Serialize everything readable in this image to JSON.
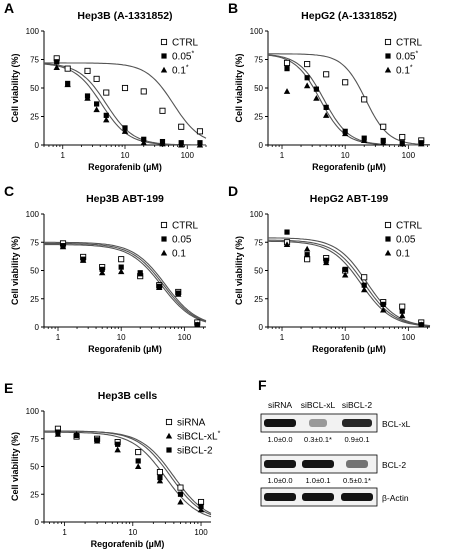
{
  "figure": {
    "panels": [
      {
        "letter": "A",
        "title": "Hep3B (A-1331852)",
        "ylabel": "Cell viability (%)",
        "xlabel": "Regorafenib (µM)"
      },
      {
        "letter": "B",
        "title": "HepG2 (A-1331852)",
        "ylabel": "Cell viability (%)",
        "xlabel": "Regorafenib (µM)"
      },
      {
        "letter": "C",
        "title": "Hep3B ABT-199",
        "ylabel": "Cell viability (%)",
        "xlabel": "Regorafenib (µM)"
      },
      {
        "letter": "D",
        "title": "HepG2 ABT-199",
        "ylabel": "Cell viability (%)",
        "xlabel": "Regorafenib (µM)"
      },
      {
        "letter": "E",
        "title": "Hep3B cells",
        "ylabel": "Cell viability (%)",
        "xlabel": "Regorafenib (µM)"
      }
    ],
    "western": {
      "letter": "F",
      "lanes": [
        "siRNA",
        "siBCL-xL",
        "siBCL-2"
      ],
      "rows": [
        {
          "label": "BCL-xL",
          "quant": [
            "1.0±0.0",
            "0.3±0.1*",
            "0.9±0.1"
          ],
          "intensity": [
            1.0,
            0.3,
            0.9
          ]
        },
        {
          "label": "BCL-2",
          "quant": [
            "1.0±0.0",
            "1.0±0.1",
            "0.5±0.1*"
          ],
          "intensity": [
            1.0,
            1.0,
            0.5
          ]
        },
        {
          "label": "β-Actin",
          "quant": [],
          "intensity": [
            1.0,
            1.0,
            1.0
          ]
        }
      ]
    }
  },
  "chart_data": [
    {
      "type": "scatter",
      "title": "Hep3B (A-1331852)",
      "xlabel": "Regorafenib (µM)",
      "ylabel": "Cell viability (%)",
      "xscale": "log",
      "xlim": [
        0.5,
        200
      ],
      "ylim": [
        0,
        100
      ],
      "yticks": [
        0,
        25,
        50,
        75,
        100
      ],
      "xticks": [
        1,
        10,
        100
      ],
      "legend_position": "top-right",
      "series": [
        {
          "name": "CTRL",
          "marker": "open-square",
          "x": [
            0.8,
            1.2,
            2.5,
            3.5,
            5,
            10,
            20,
            40,
            80,
            160
          ],
          "y": [
            76,
            67,
            65,
            58,
            46,
            50,
            47,
            30,
            16,
            12
          ],
          "fit": {
            "top": 72,
            "bottom": 0,
            "ic50": 60,
            "hill": 2.0
          }
        },
        {
          "name": "0.05*",
          "legend_label": "0.05",
          "legend_sup": "*",
          "marker": "filled-square",
          "x": [
            0.8,
            1.2,
            2.5,
            3.5,
            5,
            10,
            20,
            40,
            80,
            160
          ],
          "y": [
            73,
            54,
            43,
            36,
            26,
            15,
            5,
            3,
            2,
            2
          ],
          "fit": {
            "top": 72,
            "bottom": 0,
            "ic50": 5,
            "hill": 2.0
          }
        },
        {
          "name": "0.1*",
          "legend_label": "0.1",
          "legend_sup": "*",
          "marker": "filled-triangle",
          "x": [
            0.8,
            1.2,
            2.5,
            3.5,
            5,
            10,
            20,
            40,
            80,
            160
          ],
          "y": [
            68,
            53,
            41,
            31,
            22,
            12,
            2,
            1,
            0,
            0
          ],
          "fit": {
            "top": 72,
            "bottom": 0,
            "ic50": 4.2,
            "hill": 2.0
          }
        }
      ]
    },
    {
      "type": "scatter",
      "title": "HepG2 (A-1331852)",
      "xlabel": "Regorafenib (µM)",
      "ylabel": "Cell viability (%)",
      "xscale": "log",
      "xlim": [
        0.6,
        220
      ],
      "ylim": [
        0,
        100
      ],
      "yticks": [
        0,
        25,
        50,
        75,
        100
      ],
      "xticks": [
        1,
        10,
        100
      ],
      "legend_position": "top-right",
      "series": [
        {
          "name": "CTRL",
          "marker": "open-square",
          "x": [
            1.2,
            2.5,
            5,
            10,
            20,
            40,
            80,
            160
          ],
          "y": [
            72,
            71,
            62,
            55,
            40,
            16,
            7,
            4
          ],
          "fit": {
            "top": 80,
            "bottom": 0,
            "ic50": 21,
            "hill": 2.4
          }
        },
        {
          "name": "0.05*",
          "legend_label": "0.05",
          "legend_sup": "*",
          "marker": "filled-square",
          "x": [
            1.2,
            2.5,
            3.5,
            5,
            10,
            20,
            40,
            80,
            160
          ],
          "y": [
            67,
            59,
            49,
            33,
            12,
            6,
            4,
            2,
            2
          ],
          "fit": {
            "top": 80,
            "bottom": 0,
            "ic50": 4.6,
            "hill": 2.2
          }
        },
        {
          "name": "0.1*",
          "legend_label": "0.1",
          "legend_sup": "*",
          "marker": "filled-triangle",
          "x": [
            1.2,
            2.5,
            3.5,
            5,
            10,
            20,
            40,
            80,
            160
          ],
          "y": [
            47,
            52,
            41,
            26,
            10,
            4,
            2,
            1,
            1
          ],
          "fit": {
            "top": 80,
            "bottom": 0,
            "ic50": 4.0,
            "hill": 2.2
          }
        }
      ]
    },
    {
      "type": "scatter",
      "title": "Hep3B ABT-199",
      "xlabel": "Regorafenib (µM)",
      "ylabel": "Cell viability (%)",
      "xscale": "log",
      "xlim": [
        0.6,
        220
      ],
      "ylim": [
        0,
        100
      ],
      "yticks": [
        0,
        25,
        50,
        75,
        100
      ],
      "xticks": [
        1,
        10,
        100
      ],
      "legend_position": "top-right",
      "series": [
        {
          "name": "CTRL",
          "marker": "open-square",
          "x": [
            1.2,
            2.5,
            5,
            10,
            20,
            40,
            80,
            160
          ],
          "y": [
            74,
            62,
            53,
            60,
            45,
            37,
            31,
            4
          ],
          "fit": {
            "top": 75,
            "bottom": 0,
            "ic50": 50,
            "hill": 1.7
          }
        },
        {
          "name": "0.05",
          "marker": "filled-square",
          "x": [
            1.2,
            2.5,
            5,
            10,
            20,
            40,
            80,
            160
          ],
          "y": [
            72,
            60,
            51,
            53,
            48,
            36,
            30,
            2
          ],
          "fit": {
            "top": 74,
            "bottom": 0,
            "ic50": 47,
            "hill": 1.7
          }
        },
        {
          "name": "0.1",
          "marker": "filled-triangle",
          "x": [
            1.2,
            2.5,
            5,
            10,
            20,
            40,
            80,
            160
          ],
          "y": [
            71,
            59,
            48,
            49,
            47,
            35,
            29,
            2
          ],
          "fit": {
            "top": 73,
            "bottom": 0,
            "ic50": 44,
            "hill": 1.7
          }
        }
      ]
    },
    {
      "type": "scatter",
      "title": "HepG2 ABT-199",
      "xlabel": "Regorafenib (µM)",
      "ylabel": "Cell viability (%)",
      "xscale": "log",
      "xlim": [
        0.6,
        220
      ],
      "ylim": [
        0,
        100
      ],
      "yticks": [
        0,
        25,
        50,
        75,
        100
      ],
      "xticks": [
        1,
        10,
        100
      ],
      "legend_position": "top-right",
      "series": [
        {
          "name": "CTRL",
          "marker": "open-square",
          "x": [
            1.2,
            2.5,
            5,
            10,
            20,
            40,
            80,
            160
          ],
          "y": [
            75,
            60,
            61,
            50,
            44,
            22,
            18,
            4
          ],
          "fit": {
            "top": 79,
            "bottom": 0,
            "ic50": 22,
            "hill": 1.8
          }
        },
        {
          "name": "0.05",
          "marker": "filled-square",
          "x": [
            1.2,
            2.5,
            5,
            10,
            20,
            40,
            80,
            160
          ],
          "y": [
            84,
            64,
            59,
            51,
            37,
            20,
            14,
            2
          ],
          "fit": {
            "top": 77,
            "bottom": 0,
            "ic50": 20,
            "hill": 1.8
          }
        },
        {
          "name": "0.1",
          "marker": "filled-triangle",
          "x": [
            1.2,
            2.5,
            5,
            10,
            20,
            40,
            80,
            160
          ],
          "y": [
            73,
            69,
            57,
            46,
            33,
            15,
            10,
            2
          ],
          "fit": {
            "top": 76,
            "bottom": 0,
            "ic50": 18,
            "hill": 1.8
          }
        }
      ]
    },
    {
      "type": "scatter",
      "title": "Hep3B cells",
      "xlabel": "Regorafenib (µM)",
      "ylabel": "Cell viability (%)",
      "xscale": "log",
      "xlim": [
        0.5,
        140
      ],
      "ylim": [
        0,
        100
      ],
      "yticks": [
        0,
        25,
        50,
        75,
        100
      ],
      "xticks": [
        1,
        10,
        100
      ],
      "legend_position": "top-right",
      "series": [
        {
          "name": "siRNA",
          "marker": "open-square",
          "x": [
            0.8,
            1.5,
            3,
            6,
            12,
            25,
            50,
            100
          ],
          "y": [
            84,
            77,
            75,
            72,
            63,
            45,
            31,
            18
          ],
          "fit": {
            "top": 82,
            "bottom": 0,
            "ic50": 40,
            "hill": 1.8
          }
        },
        {
          "name": "siBCL-xL*",
          "legend_label": "siBCL-xL",
          "legend_sup": "*",
          "marker": "filled-triangle",
          "x": [
            0.8,
            1.5,
            3,
            6,
            12,
            25,
            50,
            100
          ],
          "y": [
            79,
            79,
            73,
            65,
            50,
            37,
            18,
            11
          ],
          "fit": {
            "top": 81,
            "bottom": 0,
            "ic50": 30,
            "hill": 1.8
          }
        },
        {
          "name": "siBCL-2",
          "marker": "filled-square",
          "x": [
            0.8,
            1.5,
            3,
            6,
            12,
            25,
            50,
            100
          ],
          "y": [
            81,
            78,
            74,
            70,
            55,
            40,
            25,
            14
          ],
          "fit": {
            "top": 82,
            "bottom": 0,
            "ic50": 36,
            "hill": 1.8
          }
        }
      ]
    }
  ]
}
